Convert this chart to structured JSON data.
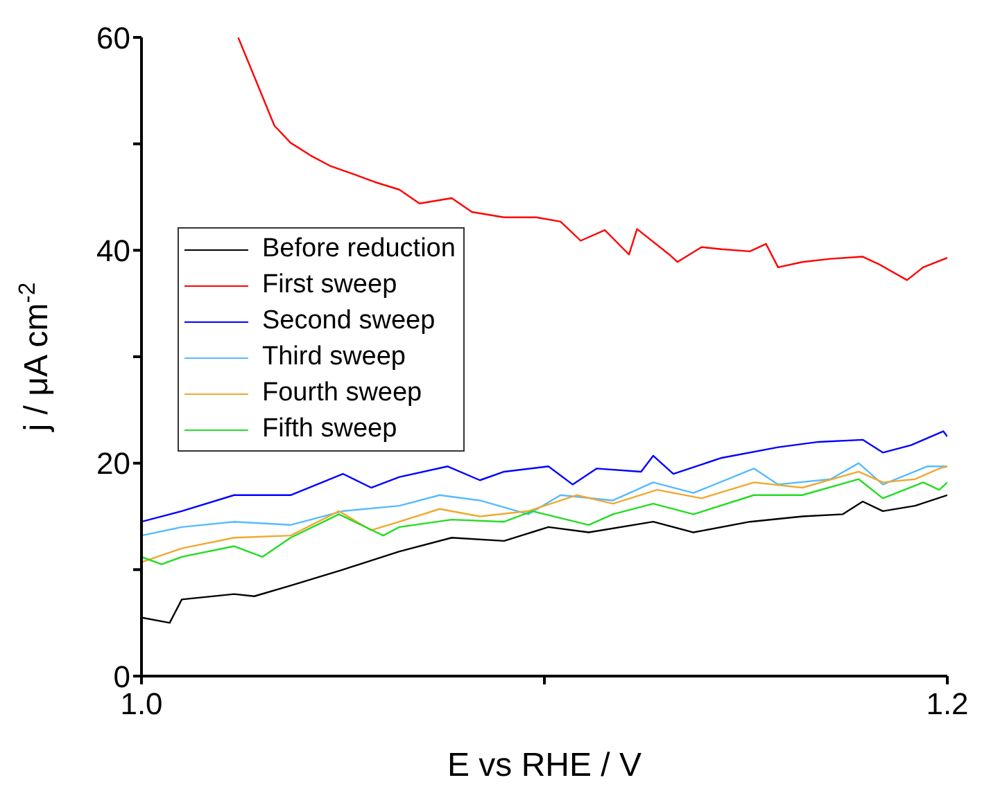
{
  "chart_data": {
    "type": "line",
    "xlabel": "E vs RHE / V",
    "ylabel": "j / μA cm$^{-2}$",
    "xlim": [
      1.0,
      1.2
    ],
    "xticks": [
      {
        "value": 1.0,
        "label": "1.0"
      },
      {
        "value": 1.1,
        "label": null
      },
      {
        "value": 1.2,
        "label": "1.2"
      }
    ],
    "ylim": [
      0,
      60
    ],
    "yticks": [
      0,
      {
        "value": 10,
        "label": null
      },
      20,
      {
        "value": 30,
        "label": null
      },
      40,
      {
        "value": 50,
        "label": null
      },
      60
    ],
    "legend": "top left",
    "marker": "none",
    "line_style": "solid",
    "series": [
      {
        "name": "Before reduction",
        "color": "#000000",
        "x": [
          1.0,
          1.007,
          1.01,
          1.023,
          1.028,
          1.037,
          1.05,
          1.064,
          1.077,
          1.09,
          1.101,
          1.111,
          1.127,
          1.137,
          1.151,
          1.164,
          1.174,
          1.179,
          1.184,
          1.192,
          1.2
        ],
        "values": [
          5.5,
          5.0,
          7.2,
          7.7,
          7.5,
          8.5,
          10.0,
          11.7,
          13.0,
          12.7,
          14.0,
          13.5,
          14.5,
          13.5,
          14.5,
          15.0,
          15.2,
          16.4,
          15.5,
          16.0,
          17.0
        ]
      },
      {
        "name": "First sweep",
        "color": "#ff0000",
        "x": [
          1.024,
          1.029,
          1.033,
          1.037,
          1.042,
          1.047,
          1.053,
          1.058,
          1.064,
          1.069,
          1.077,
          1.082,
          1.09,
          1.098,
          1.104,
          1.109,
          1.115,
          1.121,
          1.123,
          1.131,
          1.133,
          1.139,
          1.144,
          1.151,
          1.155,
          1.158,
          1.164,
          1.171,
          1.179,
          1.183,
          1.19,
          1.194,
          1.2
        ],
        "values": [
          60,
          55.4,
          51.7,
          50.1,
          48.9,
          47.9,
          47.1,
          46.4,
          45.7,
          44.4,
          44.9,
          43.6,
          43.1,
          43.1,
          42.7,
          40.9,
          41.9,
          39.6,
          42.0,
          39.6,
          38.9,
          40.3,
          40.1,
          39.9,
          40.6,
          38.4,
          38.9,
          39.2,
          39.4,
          38.7,
          37.2,
          38.4,
          39.3
        ]
      },
      {
        "name": "Second sweep",
        "color": "#0000ff",
        "x": [
          1.0,
          1.01,
          1.023,
          1.037,
          1.05,
          1.057,
          1.064,
          1.076,
          1.084,
          1.09,
          1.101,
          1.107,
          1.113,
          1.124,
          1.127,
          1.132,
          1.144,
          1.158,
          1.168,
          1.179,
          1.184,
          1.191,
          1.199,
          1.2
        ],
        "values": [
          14.5,
          15.5,
          17.0,
          17.0,
          19.0,
          17.7,
          18.7,
          19.7,
          18.4,
          19.2,
          19.7,
          18.0,
          19.5,
          19.2,
          20.7,
          19.0,
          20.5,
          21.5,
          22.0,
          22.2,
          21.0,
          21.7,
          23.0,
          22.5
        ]
      },
      {
        "name": "Third sweep",
        "color": "#55bbff",
        "x": [
          1.0,
          1.01,
          1.023,
          1.037,
          1.05,
          1.064,
          1.074,
          1.084,
          1.096,
          1.104,
          1.117,
          1.127,
          1.137,
          1.152,
          1.158,
          1.171,
          1.178,
          1.184,
          1.195,
          1.2
        ],
        "values": [
          13.2,
          14.0,
          14.5,
          14.2,
          15.5,
          16.0,
          17.0,
          16.5,
          15.2,
          17.0,
          16.5,
          18.2,
          17.2,
          19.5,
          18.0,
          18.5,
          20.0,
          18.0,
          19.7,
          19.7
        ]
      },
      {
        "name": "Fourth sweep",
        "color": "#f0a830",
        "x": [
          1.0,
          1.01,
          1.023,
          1.037,
          1.049,
          1.057,
          1.064,
          1.074,
          1.084,
          1.096,
          1.108,
          1.117,
          1.128,
          1.139,
          1.152,
          1.164,
          1.178,
          1.184,
          1.192,
          1.198,
          1.2
        ],
        "values": [
          10.7,
          12.0,
          13.0,
          13.2,
          15.5,
          13.7,
          14.5,
          15.7,
          15.0,
          15.5,
          17.0,
          16.2,
          17.5,
          16.7,
          18.2,
          17.7,
          19.2,
          18.2,
          18.5,
          19.5,
          19.7
        ]
      },
      {
        "name": "Fifth sweep",
        "color": "#22dd22",
        "x": [
          1.0,
          1.005,
          1.01,
          1.023,
          1.03,
          1.037,
          1.049,
          1.06,
          1.064,
          1.077,
          1.09,
          1.097,
          1.111,
          1.117,
          1.127,
          1.137,
          1.152,
          1.164,
          1.178,
          1.184,
          1.194,
          1.198,
          1.2
        ],
        "values": [
          11.2,
          10.5,
          11.2,
          12.2,
          11.2,
          13.0,
          15.2,
          13.2,
          14.0,
          14.7,
          14.5,
          15.5,
          14.2,
          15.2,
          16.2,
          15.2,
          17.0,
          17.0,
          18.5,
          16.7,
          18.2,
          17.5,
          18.2
        ]
      }
    ]
  }
}
